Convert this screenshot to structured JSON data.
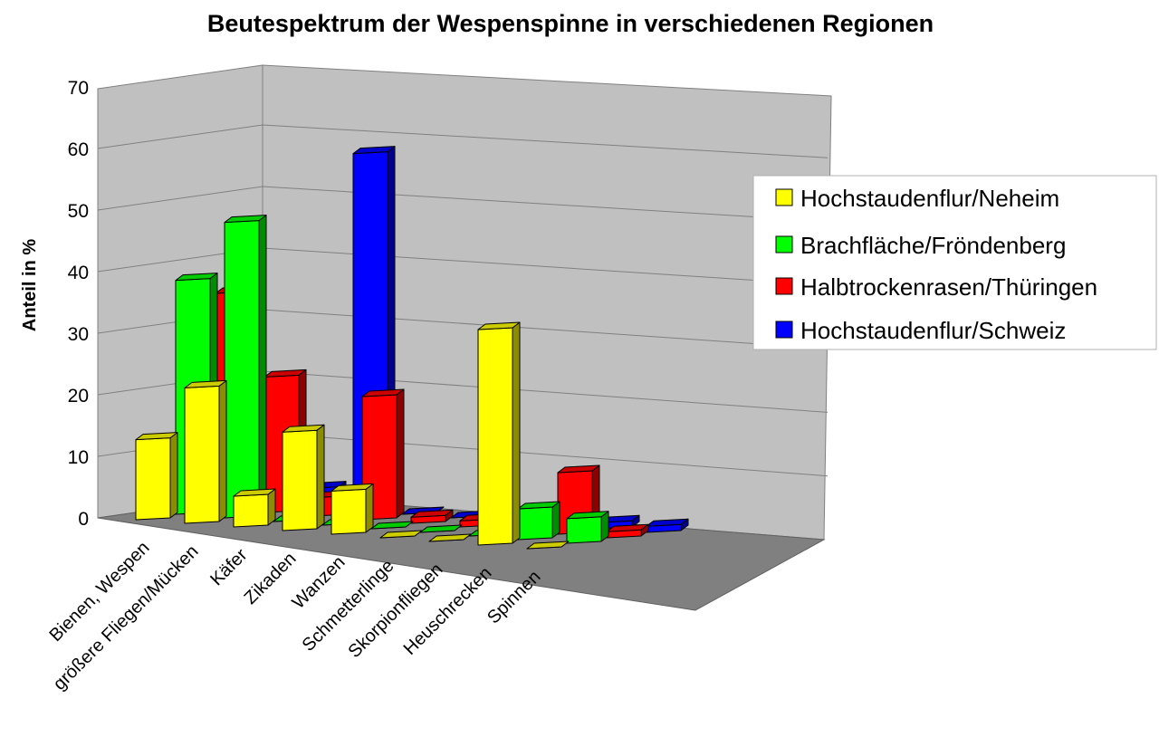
{
  "chart_data": {
    "type": "bar",
    "title": "Beutespektrum der Wespenspinne in verschiedenen Regionen",
    "ylabel": "Anteil in %",
    "ylim": [
      0,
      70
    ],
    "yticks": [
      0,
      10,
      20,
      30,
      40,
      50,
      60,
      70
    ],
    "categories": [
      "Bienen, Wespen",
      "größere Fliegen/Mücken",
      "Käfer",
      "Zikaden",
      "Wanzen",
      "Schmetterlinge",
      "Skorpionfliegen",
      "Heuschrecken",
      "Spinnen"
    ],
    "legend_position": "right",
    "grid": true,
    "series": [
      {
        "name": "Hochstaudenflur/Neheim",
        "color": "#ffff00",
        "values": [
          13,
          22,
          5,
          16,
          7,
          0,
          0,
          35,
          0
        ]
      },
      {
        "name": "Brachfläche/Fröndenberg",
        "color": "#00ff00",
        "values": [
          38,
          48,
          0,
          0,
          0,
          0,
          0,
          5,
          4
        ]
      },
      {
        "name": "Halbtrockenrasen/Thüringen",
        "color": "#ff0000",
        "values": [
          35,
          22,
          3,
          20,
          1,
          1,
          0,
          10,
          1
        ]
      },
      {
        "name": "Hochstaudenflur/Schweiz",
        "color": "#0000ff",
        "values": [
          14,
          3,
          58,
          0,
          0,
          0,
          1,
          1,
          1
        ]
      }
    ]
  }
}
